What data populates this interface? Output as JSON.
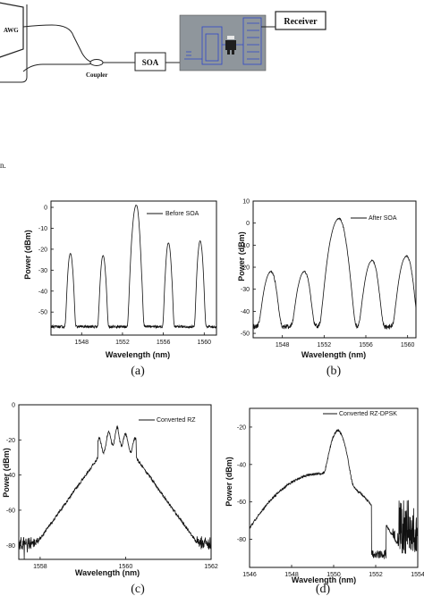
{
  "diagram": {
    "awg_label": "AWG",
    "coupler_label": "Coupler",
    "soa_label": "SOA",
    "receiver_label": "Receiver",
    "stray_mark": "n."
  },
  "chart_data": [
    {
      "id": "a",
      "type": "line",
      "caption": "(a)",
      "legend": "Before SOA",
      "xlabel": "Wavelength (nm)",
      "ylabel": "Power (dBm)",
      "xlim": [
        1545.0,
        1561.2
      ],
      "ylim": [
        -61,
        3
      ],
      "xticks": [
        1548,
        1552,
        1556,
        1560
      ],
      "yticks": [
        0,
        -10,
        -20,
        -30,
        -40,
        -50
      ],
      "baseline": -57,
      "noise": 0.6,
      "peaks": [
        {
          "x": 1546.9,
          "y": -22,
          "w": 0.12
        },
        {
          "x": 1550.1,
          "y": -23,
          "w": 0.12
        },
        {
          "x": 1553.3,
          "y": 0,
          "w": 0.15
        },
        {
          "x": 1556.5,
          "y": -17,
          "w": 0.12
        },
        {
          "x": 1559.6,
          "y": -16,
          "w": 0.12
        }
      ],
      "series_name": "Before SOA"
    },
    {
      "id": "b",
      "type": "line",
      "caption": "(b)",
      "legend": "After SOA",
      "xlabel": "Wavelength (nm)",
      "ylabel": "Power (dBm)",
      "xlim": [
        1545.2,
        1560.8
      ],
      "ylim": [
        -52,
        10
      ],
      "xticks": [
        1548,
        1552,
        1556,
        1560
      ],
      "yticks": [
        10,
        0,
        -10,
        -20,
        -30,
        -40,
        -50
      ],
      "baseline": -47,
      "noise": 1.2,
      "peaks": [
        {
          "x": 1546.8,
          "y": -23,
          "w": 0.3
        },
        {
          "x": 1550.0,
          "y": -23,
          "w": 0.3
        },
        {
          "x": 1553.3,
          "y": 1,
          "w": 0.35
        },
        {
          "x": 1556.5,
          "y": -18,
          "w": 0.3
        },
        {
          "x": 1559.8,
          "y": -16,
          "w": 0.3
        }
      ],
      "series_name": "After SOA"
    },
    {
      "id": "c",
      "type": "line",
      "caption": "(c)",
      "legend": "Converted RZ",
      "xlabel": "Wavelength (nm)",
      "ylabel": "Power (dBm)",
      "xlim": [
        1557.5,
        1562.0
      ],
      "ylim": [
        -88,
        0
      ],
      "xticks": [
        1558,
        1560,
        1562
      ],
      "yticks": [
        0,
        -20,
        -40,
        -60,
        -80
      ],
      "center": 1559.8,
      "peak_level": -11,
      "shoulder": -23,
      "floor": -79,
      "noise": 3.5,
      "series_name": "Converted RZ"
    },
    {
      "id": "d",
      "type": "line",
      "caption": "(d)",
      "legend": "Converted RZ-DPSK",
      "xlabel": "Wavelength (nm)",
      "ylabel": "Power (dBm)",
      "xlim": [
        1546.0,
        1554.0
      ],
      "ylim": [
        -95,
        -10
      ],
      "xticks": [
        1546,
        1548,
        1550,
        1552,
        1554
      ],
      "yticks": [
        -20,
        -40,
        -60,
        -80
      ],
      "center": 1550.2,
      "peak_level": -22,
      "shoulder": -45,
      "floor": -82,
      "noise": 5,
      "series_name": "Converted RZ-DPSK"
    }
  ]
}
